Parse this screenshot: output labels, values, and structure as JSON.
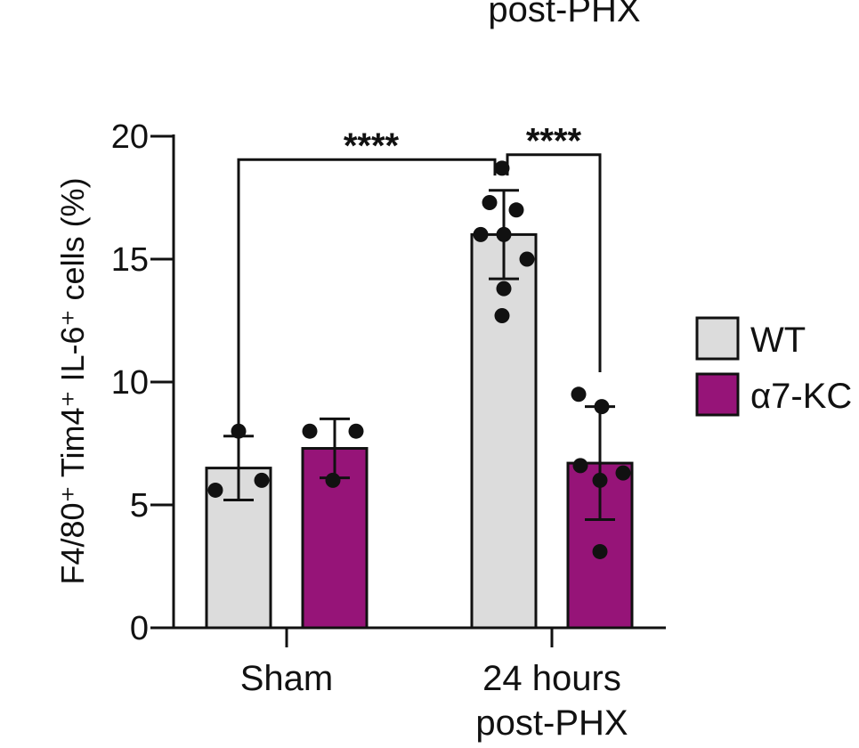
{
  "chart_data": {
    "type": "bar",
    "title": "",
    "xlabel": "",
    "ylabel": "F4/80⁺ Tim4⁺ IL-6⁺ cells (%)",
    "ylim": [
      0,
      20
    ],
    "yticks": [
      0,
      5,
      10,
      15,
      20
    ],
    "groups": [
      {
        "label_lines": [
          "Sham"
        ]
      },
      {
        "label_lines": [
          "24 hours",
          "post-PHX"
        ]
      }
    ],
    "top_label": "post-PHX",
    "series": [
      {
        "name": "WT",
        "color": "#dcdcdc",
        "values": [
          6.5,
          16.0
        ],
        "sd": [
          1.3,
          1.8
        ],
        "points": [
          [
            5.6,
            8.0,
            6.0
          ],
          [
            18.7,
            17.3,
            17.0,
            16.0,
            16.0,
            15.0,
            13.8,
            12.7
          ]
        ]
      },
      {
        "name": "α7-KC",
        "color": "#961478",
        "values": [
          7.3,
          6.7
        ],
        "sd": [
          1.2,
          2.3
        ],
        "points": [
          [
            8.0,
            8.0,
            6.0
          ],
          [
            9.5,
            9.0,
            6.6,
            6.0,
            6.3,
            3.1
          ]
        ]
      }
    ],
    "significance": [
      {
        "label": "****",
        "compare": [
          "Sham WT",
          "24 hours WT"
        ]
      },
      {
        "label": "****",
        "compare": [
          "24 hours WT",
          "24 hours α7-KC"
        ]
      }
    ],
    "legend_position": "right"
  }
}
